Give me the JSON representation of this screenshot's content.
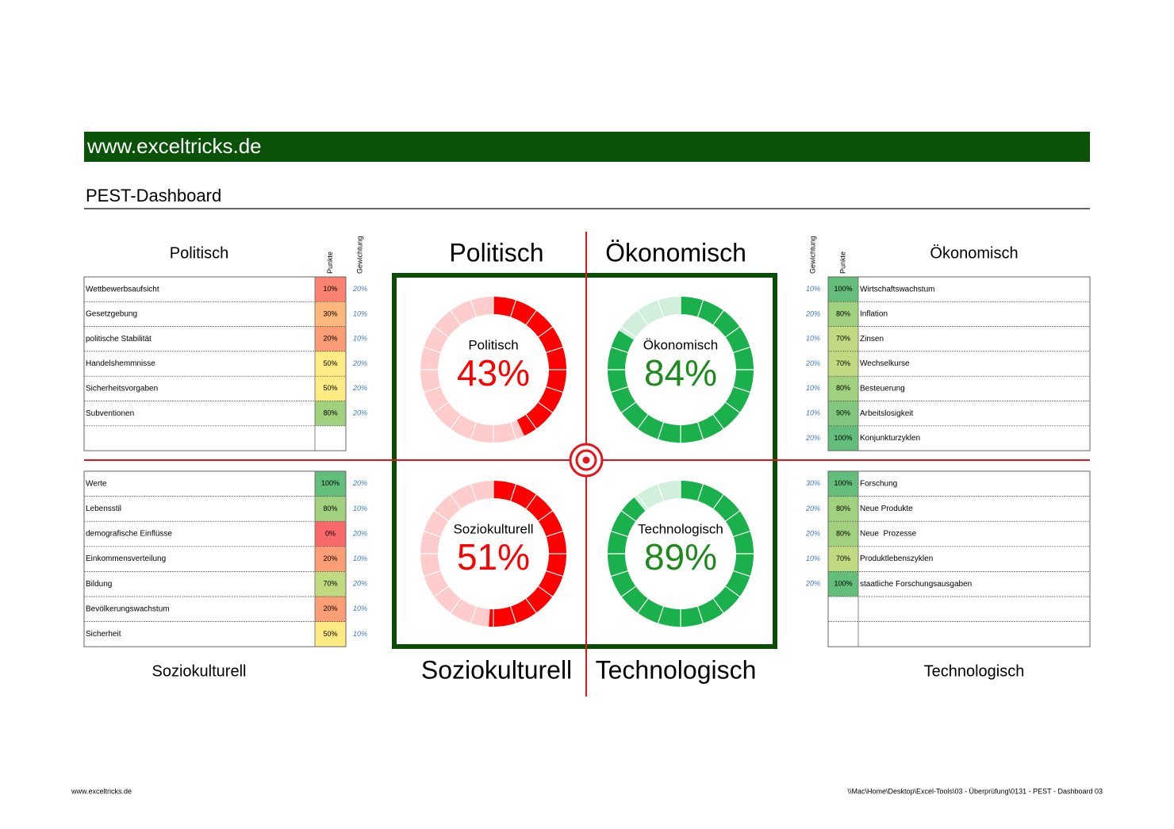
{
  "header": {
    "banner": "www.exceltricks.de",
    "title": "PEST-Dashboard"
  },
  "quadrant_labels": [
    "Politisch",
    "Ökonomisch",
    "Soziokulturell",
    "Technologisch"
  ],
  "chart_data": [
    {
      "type": "donut",
      "title": "Politisch",
      "values": [
        43
      ],
      "value_labels": [
        "43%"
      ],
      "color": "#ff0000",
      "label_color": "#ff0000"
    },
    {
      "type": "donut",
      "title": "Ökonomisch",
      "values": [
        84
      ],
      "value_labels": [
        "84%"
      ],
      "color": "#1ab04c",
      "label_color": "#1e8a1e"
    },
    {
      "type": "donut",
      "title": "Soziokulturell",
      "values": [
        51
      ],
      "value_labels": [
        "51%"
      ],
      "color": "#ff0000",
      "label_color": "#ff0000"
    },
    {
      "type": "donut",
      "title": "Technologisch",
      "values": [
        89
      ],
      "value_labels": [
        "89%"
      ],
      "color": "#1ab04c",
      "label_color": "#1e8a1e"
    }
  ],
  "tables": [
    {
      "title": "Politisch",
      "punkte_header": "Punkte",
      "gewichtung_header": "Gewichtung",
      "rows": [
        {
          "label": "Wettbewerbsaufsicht",
          "punkte": "10%",
          "gewichtung": "20%"
        },
        {
          "label": "Gesetzgebung",
          "punkte": "30%",
          "gewichtung": "10%"
        },
        {
          "label": "politische Stabilität",
          "punkte": "20%",
          "gewichtung": "10%"
        },
        {
          "label": "Handelshemmnisse",
          "punkte": "50%",
          "gewichtung": "20%"
        },
        {
          "label": "Sicherheitsvorgaben",
          "punkte": "50%",
          "gewichtung": "20%"
        },
        {
          "label": "Subventionen",
          "punkte": "80%",
          "gewichtung": "20%"
        }
      ]
    },
    {
      "title": "Ökonomisch",
      "punkte_header": "Punkte",
      "gewichtung_header": "Gewichtung",
      "rows": [
        {
          "label": "Wirtschaftswachstum",
          "punkte": "100%",
          "gewichtung": "10%"
        },
        {
          "label": "Inflation",
          "punkte": "80%",
          "gewichtung": "20%"
        },
        {
          "label": "Zinsen",
          "punkte": "70%",
          "gewichtung": "10%"
        },
        {
          "label": "Wechselkurse",
          "punkte": "70%",
          "gewichtung": "20%"
        },
        {
          "label": "Besteuerung",
          "punkte": "80%",
          "gewichtung": "10%"
        },
        {
          "label": "Arbeitslosigkeit",
          "punkte": "90%",
          "gewichtung": "10%"
        },
        {
          "label": "Konjunkturzyklen",
          "punkte": "100%",
          "gewichtung": "20%"
        }
      ]
    },
    {
      "title": "Soziokulturell",
      "rows": [
        {
          "label": "Werte",
          "punkte": "100%",
          "gewichtung": "20%"
        },
        {
          "label": "Lebensstil",
          "punkte": "80%",
          "gewichtung": "10%"
        },
        {
          "label": "demografische Einflüsse",
          "punkte": "0%",
          "gewichtung": "20%"
        },
        {
          "label": "Einkommensverteilung",
          "punkte": "20%",
          "gewichtung": "10%"
        },
        {
          "label": "Bildung",
          "punkte": "70%",
          "gewichtung": "20%"
        },
        {
          "label": "Bevölkerungswachstum",
          "punkte": "20%",
          "gewichtung": "10%"
        },
        {
          "label": "Sicherheit",
          "punkte": "50%",
          "gewichtung": "10%"
        }
      ]
    },
    {
      "title": "Technologisch",
      "rows": [
        {
          "label": "Forschung",
          "punkte": "100%",
          "gewichtung": "30%"
        },
        {
          "label": "Neue Produkte",
          "punkte": "80%",
          "gewichtung": "20%"
        },
        {
          "label": "Neue  Prozesse",
          "punkte": "80%",
          "gewichtung": "20%"
        },
        {
          "label": "Produktlebenszyklen",
          "punkte": "70%",
          "gewichtung": "10%"
        },
        {
          "label": "staatliche Forschungsausgaben",
          "punkte": "100%",
          "gewichtung": "20%"
        }
      ]
    }
  ],
  "footer": {
    "left": "www.exceltricks.de",
    "right": "\\\\Mac\\Home\\Desktop\\Excel-Tools\\03 - Überprüfung\\0131 - PEST - Dashboard 03"
  }
}
